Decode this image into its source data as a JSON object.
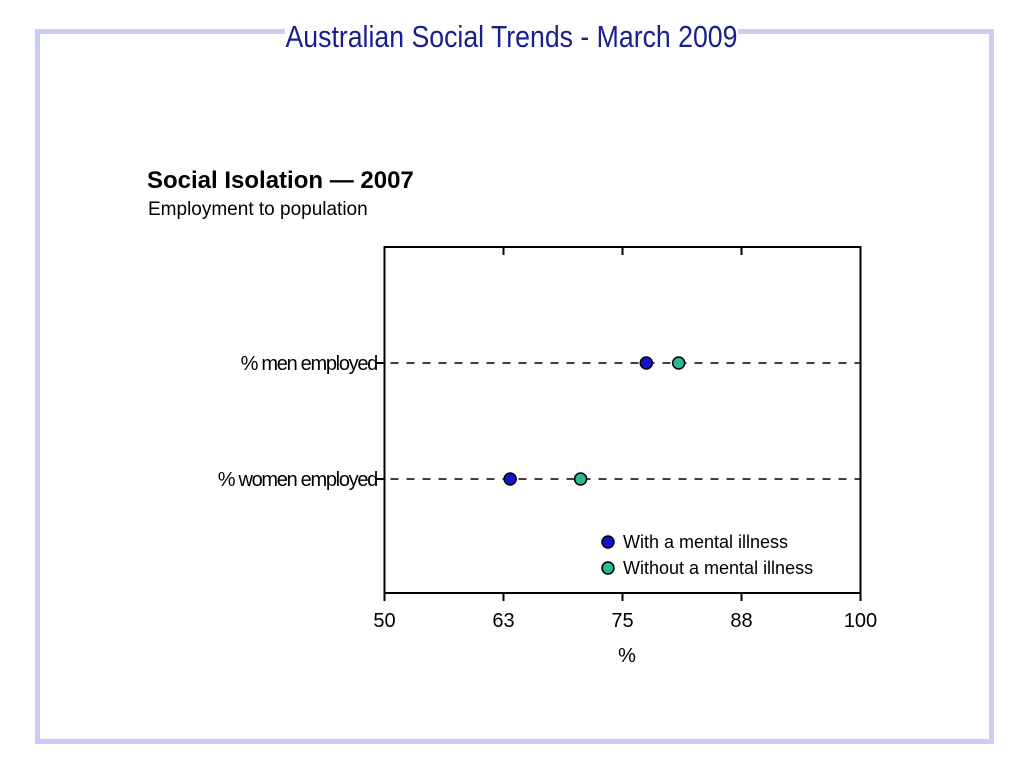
{
  "slide": {
    "banner_title": "Australian Social Trends - March 2009",
    "colors": {
      "border": "#ccccf8",
      "title": "#1a1f8c"
    }
  },
  "chart_data": {
    "type": "scatter",
    "title": "Social Isolation — 2007",
    "subtitle": "Employment to population",
    "xlabel": "%",
    "xlim": [
      50,
      100
    ],
    "x_tick_labels": [
      "50",
      "63",
      "75",
      "88",
      "100"
    ],
    "categories": [
      "% men employed",
      "% women employed"
    ],
    "series": [
      {
        "name": "With a mental illness",
        "color": "#1414c8",
        "values": [
          77.5,
          63.2
        ]
      },
      {
        "name": "Without a mental illness",
        "color": "#2ab894",
        "values": [
          80.9,
          70.6
        ]
      }
    ],
    "legend_position": "inside-bottom-right",
    "grid": false
  }
}
